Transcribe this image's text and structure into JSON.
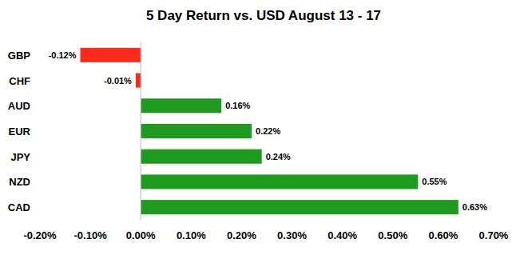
{
  "chart_data": {
    "type": "bar",
    "title": "5 Day Return vs. USD August 13 - 17",
    "orientation": "horizontal",
    "categories": [
      "GBP",
      "CHF",
      "AUD",
      "EUR",
      "JPY",
      "NZD",
      "CAD"
    ],
    "values": [
      -0.12,
      -0.01,
      0.16,
      0.22,
      0.24,
      0.55,
      0.63
    ],
    "value_labels": [
      "-0.12%",
      "-0.01%",
      "0.16%",
      "0.22%",
      "0.24%",
      "0.55%",
      "0.63%"
    ],
    "colors": [
      "#ff2a1a",
      "#ff2a1a",
      "#1e9a1e",
      "#1e9a1e",
      "#1e9a1e",
      "#1e9a1e",
      "#1e9a1e"
    ],
    "xlim": [
      -0.2,
      0.7
    ],
    "xticks": [
      {
        "value": -0.2,
        "label": "-0.20%"
      },
      {
        "value": -0.1,
        "label": "-0.10%"
      },
      {
        "value": 0,
        "label": "0.00%"
      },
      {
        "value": 0.1,
        "label": "0.10%"
      },
      {
        "value": 0.2,
        "label": "0.20%"
      },
      {
        "value": 0.3,
        "label": "0.30%"
      },
      {
        "value": 0.4,
        "label": "0.40%"
      },
      {
        "value": 0.5,
        "label": "0.50%"
      },
      {
        "value": 0.6,
        "label": "0.60%"
      },
      {
        "value": 0.7,
        "label": "0.70%"
      }
    ],
    "data_labels": true,
    "grid": false
  }
}
